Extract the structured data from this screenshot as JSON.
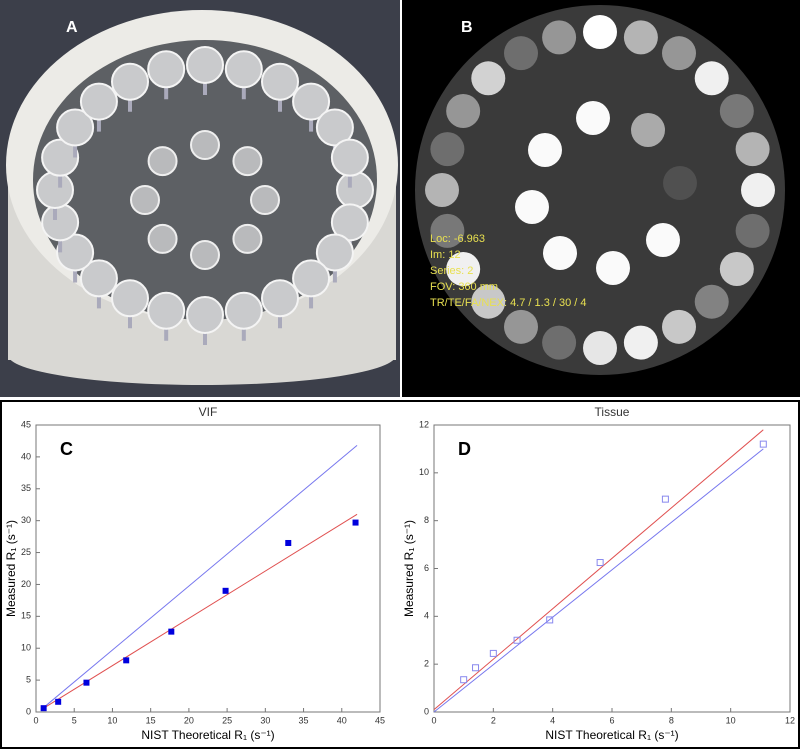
{
  "panels": {
    "a": {
      "label": "A"
    },
    "b": {
      "label": "B",
      "info": [
        "Loc: -6.963",
        "Im: 12",
        "Series: 2",
        "FOV:  360 mm",
        "TR/TE/FA/NEX:  4.7 / 1.3 / 30 / 4"
      ]
    }
  },
  "chart_data": [
    {
      "type": "scatter",
      "title": "VIF",
      "annotation": "C",
      "x_label": "NIST Theoretical R₁ (s⁻¹)",
      "y_label": "Measured R₁ (s⁻¹)",
      "xlim": [
        0,
        45
      ],
      "ylim": [
        0,
        45
      ],
      "xticks": [
        0,
        5,
        10,
        15,
        20,
        25,
        30,
        35,
        40,
        45
      ],
      "yticks": [
        0,
        5,
        10,
        15,
        20,
        25,
        30,
        35,
        40,
        45
      ],
      "series": [
        {
          "style": "line",
          "color": "#7777ee",
          "x": [
            0.8,
            42
          ],
          "values": [
            0.5,
            41.8
          ]
        },
        {
          "style": "line",
          "color": "#e05050",
          "x": [
            1,
            42
          ],
          "values": [
            0.6,
            31
          ]
        },
        {
          "style": "filled-square",
          "color": "#0000dd",
          "x": [
            1,
            2.9,
            6.6,
            11.8,
            17.7,
            24.8,
            33,
            41.8
          ],
          "values": [
            0.6,
            1.6,
            4.6,
            8.1,
            12.6,
            19,
            26.5,
            29.7
          ]
        }
      ]
    },
    {
      "type": "scatter",
      "title": "Tissue",
      "annotation": "D",
      "x_label": "NIST Theoretical R₁ (s⁻¹)",
      "y_label": "Measured R₁ (s⁻¹)",
      "xlim": [
        0,
        12
      ],
      "ylim": [
        0,
        12
      ],
      "xticks": [
        0,
        2,
        4,
        6,
        8,
        10,
        12
      ],
      "yticks": [
        0,
        2,
        4,
        6,
        8,
        10,
        12
      ],
      "series": [
        {
          "style": "line",
          "color": "#7777ee",
          "x": [
            0,
            11.1
          ],
          "values": [
            0,
            11
          ]
        },
        {
          "style": "line",
          "color": "#e05050",
          "x": [
            0,
            11.1
          ],
          "values": [
            0.1,
            11.8
          ]
        },
        {
          "style": "open-square",
          "color": "#8888ee",
          "x": [
            1,
            1.4,
            2,
            2.8,
            3.9,
            5.6,
            7.8,
            11.1
          ],
          "values": [
            1.35,
            1.85,
            2.45,
            3,
            3.85,
            6.25,
            8.9,
            11.2
          ]
        }
      ]
    }
  ]
}
